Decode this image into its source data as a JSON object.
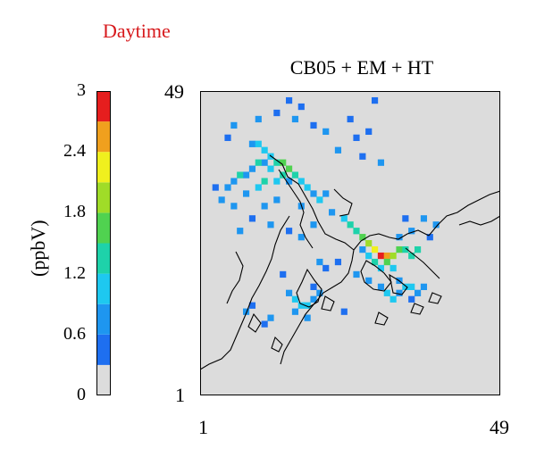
{
  "heading": "Daytime",
  "panel_title": "CB05 + EM + HT",
  "colorbar": {
    "unit_label": "(ppbV)",
    "tick_labels": [
      "0",
      "0.6",
      "1.2",
      "1.8",
      "2.4",
      "3"
    ],
    "min": 0,
    "max": 3,
    "bands": [
      {
        "from": 0.0,
        "to": 0.3,
        "color": "#dcdcdc"
      },
      {
        "from": 0.3,
        "to": 0.6,
        "color": "#1e6ff0"
      },
      {
        "from": 0.6,
        "to": 0.9,
        "color": "#1e96f0"
      },
      {
        "from": 0.9,
        "to": 1.2,
        "color": "#1ec8f0"
      },
      {
        "from": 1.2,
        "to": 1.5,
        "color": "#1ed2aa"
      },
      {
        "from": 1.5,
        "to": 1.8,
        "color": "#50d250"
      },
      {
        "from": 1.8,
        "to": 2.1,
        "color": "#a0dc28"
      },
      {
        "from": 2.1,
        "to": 2.4,
        "color": "#f0f01e"
      },
      {
        "from": 2.4,
        "to": 2.7,
        "color": "#f0a01e"
      },
      {
        "from": 2.7,
        "to": 3.0,
        "color": "#e61e1e"
      }
    ]
  },
  "chart_data": {
    "type": "heatmap",
    "title": "CB05 + EM + HT",
    "unit": "ppbV",
    "x_ticks": [
      "1",
      "49"
    ],
    "y_ticks": [
      "1",
      "49"
    ],
    "xlim": [
      1,
      49
    ],
    "ylim": [
      1,
      49
    ],
    "zlim": [
      0,
      3
    ],
    "background_color": "#dcdcdc",
    "grid": false,
    "cells": [
      {
        "x": 6,
        "y": 44,
        "v": 0.6
      },
      {
        "x": 5,
        "y": 42,
        "v": 0.5
      },
      {
        "x": 10,
        "y": 45,
        "v": 0.6
      },
      {
        "x": 13,
        "y": 46,
        "v": 0.5
      },
      {
        "x": 15,
        "y": 48,
        "v": 0.5
      },
      {
        "x": 16,
        "y": 45,
        "v": 0.6
      },
      {
        "x": 17,
        "y": 47,
        "v": 0.5
      },
      {
        "x": 19,
        "y": 44,
        "v": 0.5
      },
      {
        "x": 21,
        "y": 43,
        "v": 0.6
      },
      {
        "x": 25,
        "y": 45,
        "v": 0.5
      },
      {
        "x": 26,
        "y": 42,
        "v": 0.5
      },
      {
        "x": 29,
        "y": 48,
        "v": 0.5
      },
      {
        "x": 28,
        "y": 43,
        "v": 0.5
      },
      {
        "x": 23,
        "y": 40,
        "v": 0.6
      },
      {
        "x": 27,
        "y": 39,
        "v": 0.5
      },
      {
        "x": 30,
        "y": 38,
        "v": 0.6
      },
      {
        "x": 9,
        "y": 41,
        "v": 0.8
      },
      {
        "x": 10,
        "y": 41,
        "v": 1.0
      },
      {
        "x": 11,
        "y": 40,
        "v": 0.9
      },
      {
        "x": 12,
        "y": 39,
        "v": 1.1
      },
      {
        "x": 13,
        "y": 38,
        "v": 1.4
      },
      {
        "x": 14,
        "y": 38,
        "v": 1.6
      },
      {
        "x": 15,
        "y": 37,
        "v": 1.7
      },
      {
        "x": 14,
        "y": 36,
        "v": 1.3
      },
      {
        "x": 12,
        "y": 37,
        "v": 1.0
      },
      {
        "x": 11,
        "y": 38,
        "v": 0.8
      },
      {
        "x": 10,
        "y": 38,
        "v": 1.2
      },
      {
        "x": 9,
        "y": 37,
        "v": 0.7
      },
      {
        "x": 8,
        "y": 36,
        "v": 0.8
      },
      {
        "x": 7,
        "y": 36,
        "v": 1.3
      },
      {
        "x": 6,
        "y": 35,
        "v": 0.7
      },
      {
        "x": 5,
        "y": 34,
        "v": 0.6
      },
      {
        "x": 3,
        "y": 34,
        "v": 0.5
      },
      {
        "x": 4,
        "y": 32,
        "v": 0.8
      },
      {
        "x": 6,
        "y": 31,
        "v": 0.6
      },
      {
        "x": 8,
        "y": 33,
        "v": 0.7
      },
      {
        "x": 10,
        "y": 34,
        "v": 0.9
      },
      {
        "x": 11,
        "y": 35,
        "v": 1.3
      },
      {
        "x": 13,
        "y": 35,
        "v": 1.0
      },
      {
        "x": 15,
        "y": 35,
        "v": 0.8
      },
      {
        "x": 16,
        "y": 36,
        "v": 1.2
      },
      {
        "x": 17,
        "y": 35,
        "v": 0.9
      },
      {
        "x": 18,
        "y": 34,
        "v": 1.1
      },
      {
        "x": 19,
        "y": 33,
        "v": 0.8
      },
      {
        "x": 20,
        "y": 32,
        "v": 1.0
      },
      {
        "x": 21,
        "y": 33,
        "v": 0.7
      },
      {
        "x": 17,
        "y": 31,
        "v": 0.6
      },
      {
        "x": 13,
        "y": 32,
        "v": 0.7
      },
      {
        "x": 11,
        "y": 31,
        "v": 0.6
      },
      {
        "x": 9,
        "y": 29,
        "v": 0.5
      },
      {
        "x": 12,
        "y": 28,
        "v": 0.6
      },
      {
        "x": 7,
        "y": 27,
        "v": 0.6
      },
      {
        "x": 15,
        "y": 27,
        "v": 0.5
      },
      {
        "x": 17,
        "y": 26,
        "v": 0.7
      },
      {
        "x": 19,
        "y": 28,
        "v": 0.6
      },
      {
        "x": 22,
        "y": 30,
        "v": 0.8
      },
      {
        "x": 24,
        "y": 29,
        "v": 1.0
      },
      {
        "x": 25,
        "y": 28,
        "v": 1.3
      },
      {
        "x": 26,
        "y": 27,
        "v": 1.4
      },
      {
        "x": 27,
        "y": 26,
        "v": 1.6
      },
      {
        "x": 28,
        "y": 25,
        "v": 1.9
      },
      {
        "x": 29,
        "y": 24,
        "v": 2.2
      },
      {
        "x": 30,
        "y": 23,
        "v": 3.0
      },
      {
        "x": 31,
        "y": 23,
        "v": 2.5
      },
      {
        "x": 32,
        "y": 23,
        "v": 1.8
      },
      {
        "x": 33,
        "y": 24,
        "v": 1.6
      },
      {
        "x": 34,
        "y": 24,
        "v": 1.4
      },
      {
        "x": 35,
        "y": 23,
        "v": 1.3
      },
      {
        "x": 36,
        "y": 24,
        "v": 1.2
      },
      {
        "x": 31,
        "y": 22,
        "v": 1.5
      },
      {
        "x": 32,
        "y": 21,
        "v": 1.1
      },
      {
        "x": 30,
        "y": 21,
        "v": 0.9
      },
      {
        "x": 29,
        "y": 22,
        "v": 1.2
      },
      {
        "x": 28,
        "y": 23,
        "v": 0.9
      },
      {
        "x": 27,
        "y": 24,
        "v": 0.7
      },
      {
        "x": 33,
        "y": 26,
        "v": 0.8
      },
      {
        "x": 35,
        "y": 27,
        "v": 0.6
      },
      {
        "x": 37,
        "y": 29,
        "v": 0.7
      },
      {
        "x": 39,
        "y": 28,
        "v": 0.6
      },
      {
        "x": 38,
        "y": 26,
        "v": 0.5
      },
      {
        "x": 34,
        "y": 29,
        "v": 0.5
      },
      {
        "x": 26,
        "y": 20,
        "v": 0.6
      },
      {
        "x": 28,
        "y": 19,
        "v": 0.7
      },
      {
        "x": 30,
        "y": 18,
        "v": 0.8
      },
      {
        "x": 31,
        "y": 17,
        "v": 0.9
      },
      {
        "x": 32,
        "y": 16,
        "v": 1.0
      },
      {
        "x": 33,
        "y": 17,
        "v": 0.7
      },
      {
        "x": 34,
        "y": 18,
        "v": 0.9
      },
      {
        "x": 35,
        "y": 18,
        "v": 1.1
      },
      {
        "x": 36,
        "y": 17,
        "v": 0.8
      },
      {
        "x": 37,
        "y": 18,
        "v": 0.6
      },
      {
        "x": 33,
        "y": 19,
        "v": 0.6
      },
      {
        "x": 35,
        "y": 16,
        "v": 0.5
      },
      {
        "x": 15,
        "y": 17,
        "v": 0.7
      },
      {
        "x": 16,
        "y": 16,
        "v": 0.9
      },
      {
        "x": 17,
        "y": 15,
        "v": 1.1
      },
      {
        "x": 18,
        "y": 15,
        "v": 0.9
      },
      {
        "x": 19,
        "y": 16,
        "v": 0.8
      },
      {
        "x": 20,
        "y": 17,
        "v": 0.6
      },
      {
        "x": 16,
        "y": 14,
        "v": 0.7
      },
      {
        "x": 18,
        "y": 13,
        "v": 0.6
      },
      {
        "x": 19,
        "y": 18,
        "v": 0.5
      },
      {
        "x": 8,
        "y": 14,
        "v": 0.6
      },
      {
        "x": 9,
        "y": 15,
        "v": 0.5
      },
      {
        "x": 11,
        "y": 12,
        "v": 0.5
      },
      {
        "x": 12,
        "y": 13,
        "v": 0.6
      },
      {
        "x": 14,
        "y": 20,
        "v": 0.5
      },
      {
        "x": 24,
        "y": 14,
        "v": 0.5
      },
      {
        "x": 20,
        "y": 22,
        "v": 0.6
      },
      {
        "x": 21,
        "y": 21,
        "v": 0.5
      },
      {
        "x": 23,
        "y": 22,
        "v": 0.5
      }
    ]
  }
}
